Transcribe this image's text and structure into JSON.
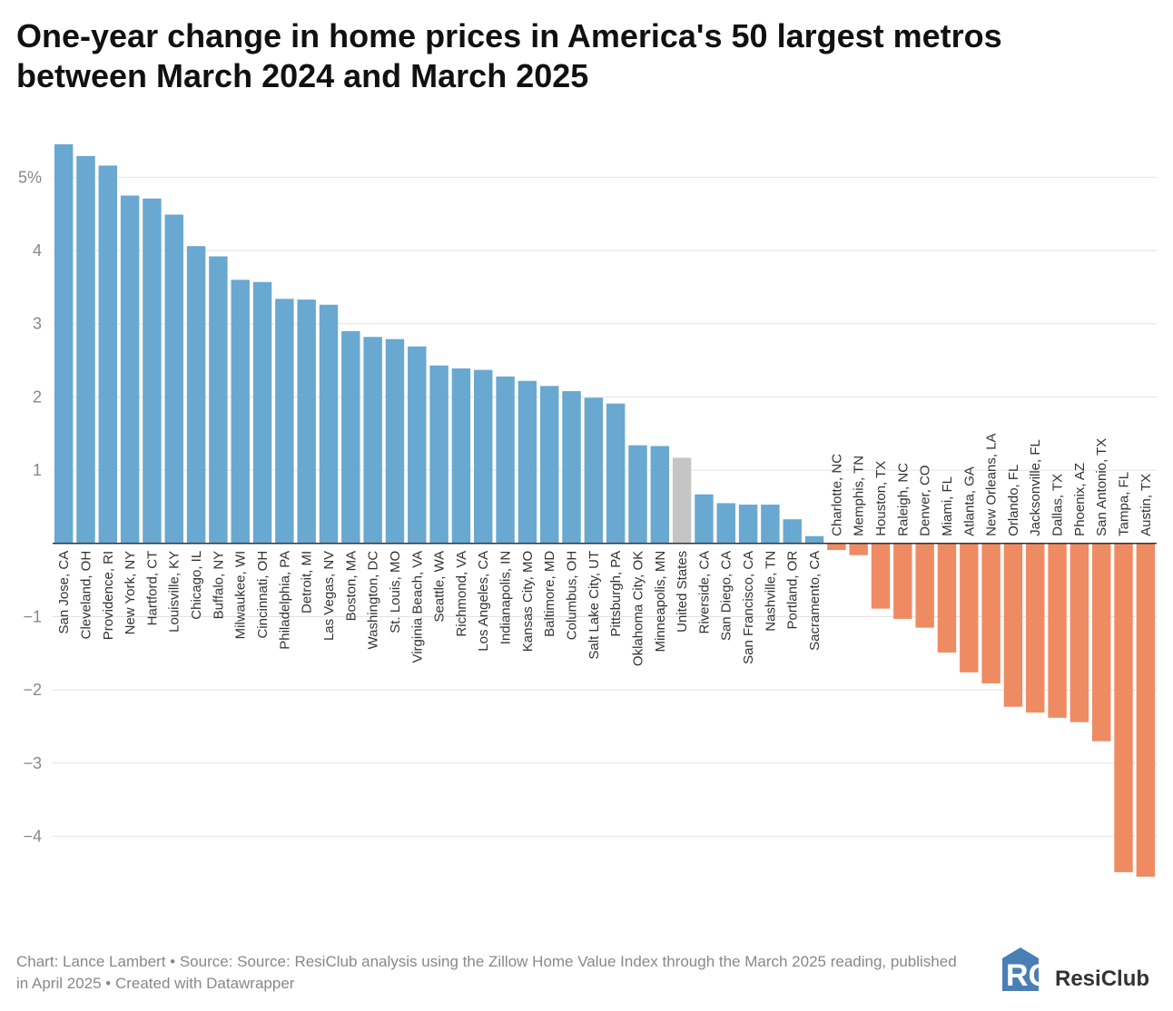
{
  "chart_data": {
    "type": "bar",
    "title": "One-year change in home prices in America's 50 largest metros between March 2024 and March 2025",
    "categories": [
      "San Jose, CA",
      "Cleveland, OH",
      "Providence, RI",
      "New York, NY",
      "Hartford, CT",
      "Louisville, KY",
      "Chicago, IL",
      "Buffalo, NY",
      "Milwaukee, WI",
      "Cincinnati, OH",
      "Philadelphia, PA",
      "Detroit, MI",
      "Las Vegas, NV",
      "Boston, MA",
      "Washington, DC",
      "St. Louis, MO",
      "Virginia Beach, VA",
      "Seattle, WA",
      "Richmond, VA",
      "Los Angeles, CA",
      "Indianapolis, IN",
      "Kansas City, MO",
      "Baltimore, MD",
      "Columbus, OH",
      "Salt Lake City, UT",
      "Pittsburgh, PA",
      "Oklahoma City, OK",
      "Minneapolis, MN",
      "United States",
      "Riverside, CA",
      "San Diego, CA",
      "San Francisco, CA",
      "Nashville, TN",
      "Portland, OR",
      "Sacramento, CA",
      "Charlotte, NC",
      "Memphis, TN",
      "Houston, TX",
      "Raleigh, NC",
      "Denver, CO",
      "Miami, FL",
      "Atlanta, GA",
      "New Orleans, LA",
      "Orlando, FL",
      "Jacksonville, FL",
      "Dallas, TX",
      "Phoenix, AZ",
      "San Antonio, TX",
      "Tampa, FL",
      "Austin, TX"
    ],
    "values": [
      5.45,
      5.29,
      5.16,
      4.75,
      4.71,
      4.49,
      4.06,
      3.92,
      3.6,
      3.57,
      3.34,
      3.33,
      3.26,
      2.9,
      2.82,
      2.79,
      2.69,
      2.43,
      2.39,
      2.37,
      2.28,
      2.22,
      2.15,
      2.08,
      1.99,
      1.91,
      1.34,
      1.33,
      1.17,
      0.67,
      0.55,
      0.53,
      0.53,
      0.33,
      0.1,
      -0.09,
      -0.16,
      -0.89,
      -1.03,
      -1.15,
      -1.49,
      -1.76,
      -1.91,
      -2.23,
      -2.31,
      -2.38,
      -2.44,
      -2.7,
      -4.49,
      -4.55
    ],
    "colors": [
      "#69a8d0",
      "#69a8d0",
      "#69a8d0",
      "#69a8d0",
      "#69a8d0",
      "#69a8d0",
      "#69a8d0",
      "#69a8d0",
      "#69a8d0",
      "#69a8d0",
      "#69a8d0",
      "#69a8d0",
      "#69a8d0",
      "#69a8d0",
      "#69a8d0",
      "#69a8d0",
      "#69a8d0",
      "#69a8d0",
      "#69a8d0",
      "#69a8d0",
      "#69a8d0",
      "#69a8d0",
      "#69a8d0",
      "#69a8d0",
      "#69a8d0",
      "#69a8d0",
      "#69a8d0",
      "#69a8d0",
      "#c5c5c5",
      "#69a8d0",
      "#69a8d0",
      "#69a8d0",
      "#69a8d0",
      "#69a8d0",
      "#69a8d0",
      "#ef8b63",
      "#ef8b63",
      "#ef8b63",
      "#ef8b63",
      "#ef8b63",
      "#ef8b63",
      "#ef8b63",
      "#ef8b63",
      "#ef8b63",
      "#ef8b63",
      "#ef8b63",
      "#ef8b63",
      "#ef8b63",
      "#ef8b63",
      "#ef8b63"
    ],
    "ylim": [
      -4.6,
      5.5
    ],
    "yticks": [
      {
        "value": 5,
        "label": "5%"
      },
      4,
      3,
      2,
      1,
      {
        "value": -1,
        "label": "−1"
      },
      {
        "value": -2,
        "label": "−2"
      },
      {
        "value": -3,
        "label": "−3"
      },
      {
        "value": -4,
        "label": "−4"
      }
    ],
    "grid": true,
    "footer": "Chart: Lance Lambert • Source: Source: ResiClub analysis using the Zillow Home Value Index through the March 2025 reading, published in April 2025 • Created with Datawrapper",
    "logo": "ResiClub"
  }
}
